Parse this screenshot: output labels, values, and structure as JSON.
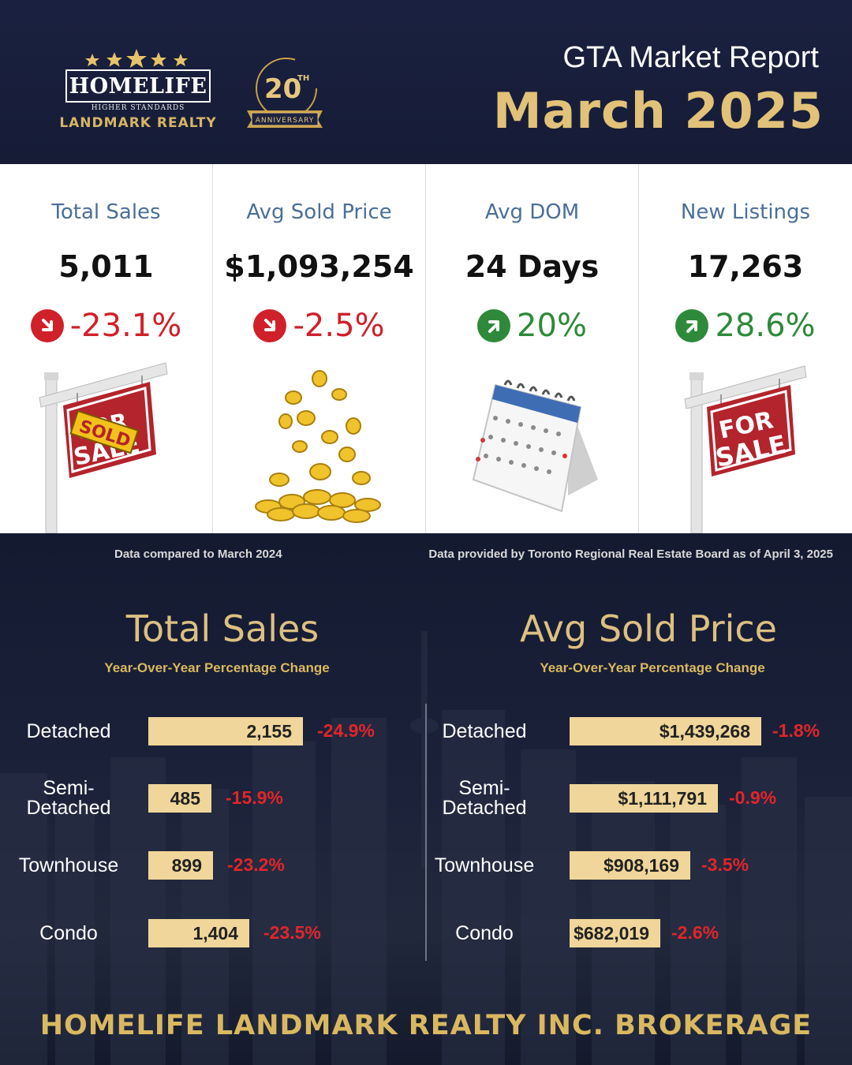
{
  "header": {
    "brand_name": "HOMELIFE",
    "brand_tagline": "HIGHER STANDARDS",
    "brand_sub": "LANDMARK REALTY",
    "anniversary_number": "20",
    "anniversary_suffix": "TH",
    "anniversary_label": "ANNIVERSARY",
    "report_title": "GTA Market Report",
    "report_month": "March 2025"
  },
  "cards": [
    {
      "label": "Total Sales",
      "value": "5,011",
      "change": "-23.1%",
      "direction": "down",
      "illustration": "sold-sign-icon"
    },
    {
      "label": "Avg Sold Price",
      "value": "$1,093,254",
      "change": "-2.5%",
      "direction": "down",
      "illustration": "gold-coins-icon"
    },
    {
      "label": "Avg DOM",
      "value": "24 Days",
      "change": "20%",
      "direction": "up",
      "illustration": "calendar-icon"
    },
    {
      "label": "New Listings",
      "value": "17,263",
      "change": "28.6%",
      "direction": "up",
      "illustration": "for-sale-sign-icon"
    }
  ],
  "notes": {
    "compared": "Data compared to March 2024",
    "provided": "Data provided by Toronto Regional Real Estate Board as of  April 3, 2025"
  },
  "colors": {
    "navy": "#141a30",
    "gold": "#dcc082",
    "bar": "#f0d69a",
    "down": "#d0202a",
    "up": "#2e8a3a"
  },
  "chart_data": [
    {
      "type": "bar",
      "title": "Total Sales",
      "subtitle": "Year-Over-Year Percentage Change",
      "categories": [
        "Detached",
        "Semi-Detached",
        "Townhouse",
        "Condo"
      ],
      "category_lines": [
        [
          "Detached"
        ],
        [
          "Semi-",
          "Detached"
        ],
        [
          "Townhouse"
        ],
        [
          "Condo"
        ]
      ],
      "values": [
        2155,
        485,
        899,
        1404
      ],
      "value_labels": [
        "2,155",
        "485",
        "899",
        "1,404"
      ],
      "changes": [
        "-24.9%",
        "-15.9%",
        "-23.2%",
        "-23.5%"
      ]
    },
    {
      "type": "bar",
      "title": "Avg Sold Price",
      "subtitle": "Year-Over-Year Percentage Change",
      "categories": [
        "Detached",
        "Semi-Detached",
        "Townhouse",
        "Condo"
      ],
      "category_lines": [
        [
          "Detached"
        ],
        [
          "Semi-",
          "Detached"
        ],
        [
          "Townhouse"
        ],
        [
          "Condo"
        ]
      ],
      "values": [
        1439268,
        1111791,
        908169,
        682019
      ],
      "value_labels": [
        "$1,439,268",
        "$1,111,791",
        "$908,169",
        "$682,019"
      ],
      "changes": [
        "-1.8%",
        "-0.9%",
        "-3.5%",
        "-2.6%"
      ]
    }
  ],
  "footer": "HOMELIFE LANDMARK REALTY INC. BROKERAGE"
}
